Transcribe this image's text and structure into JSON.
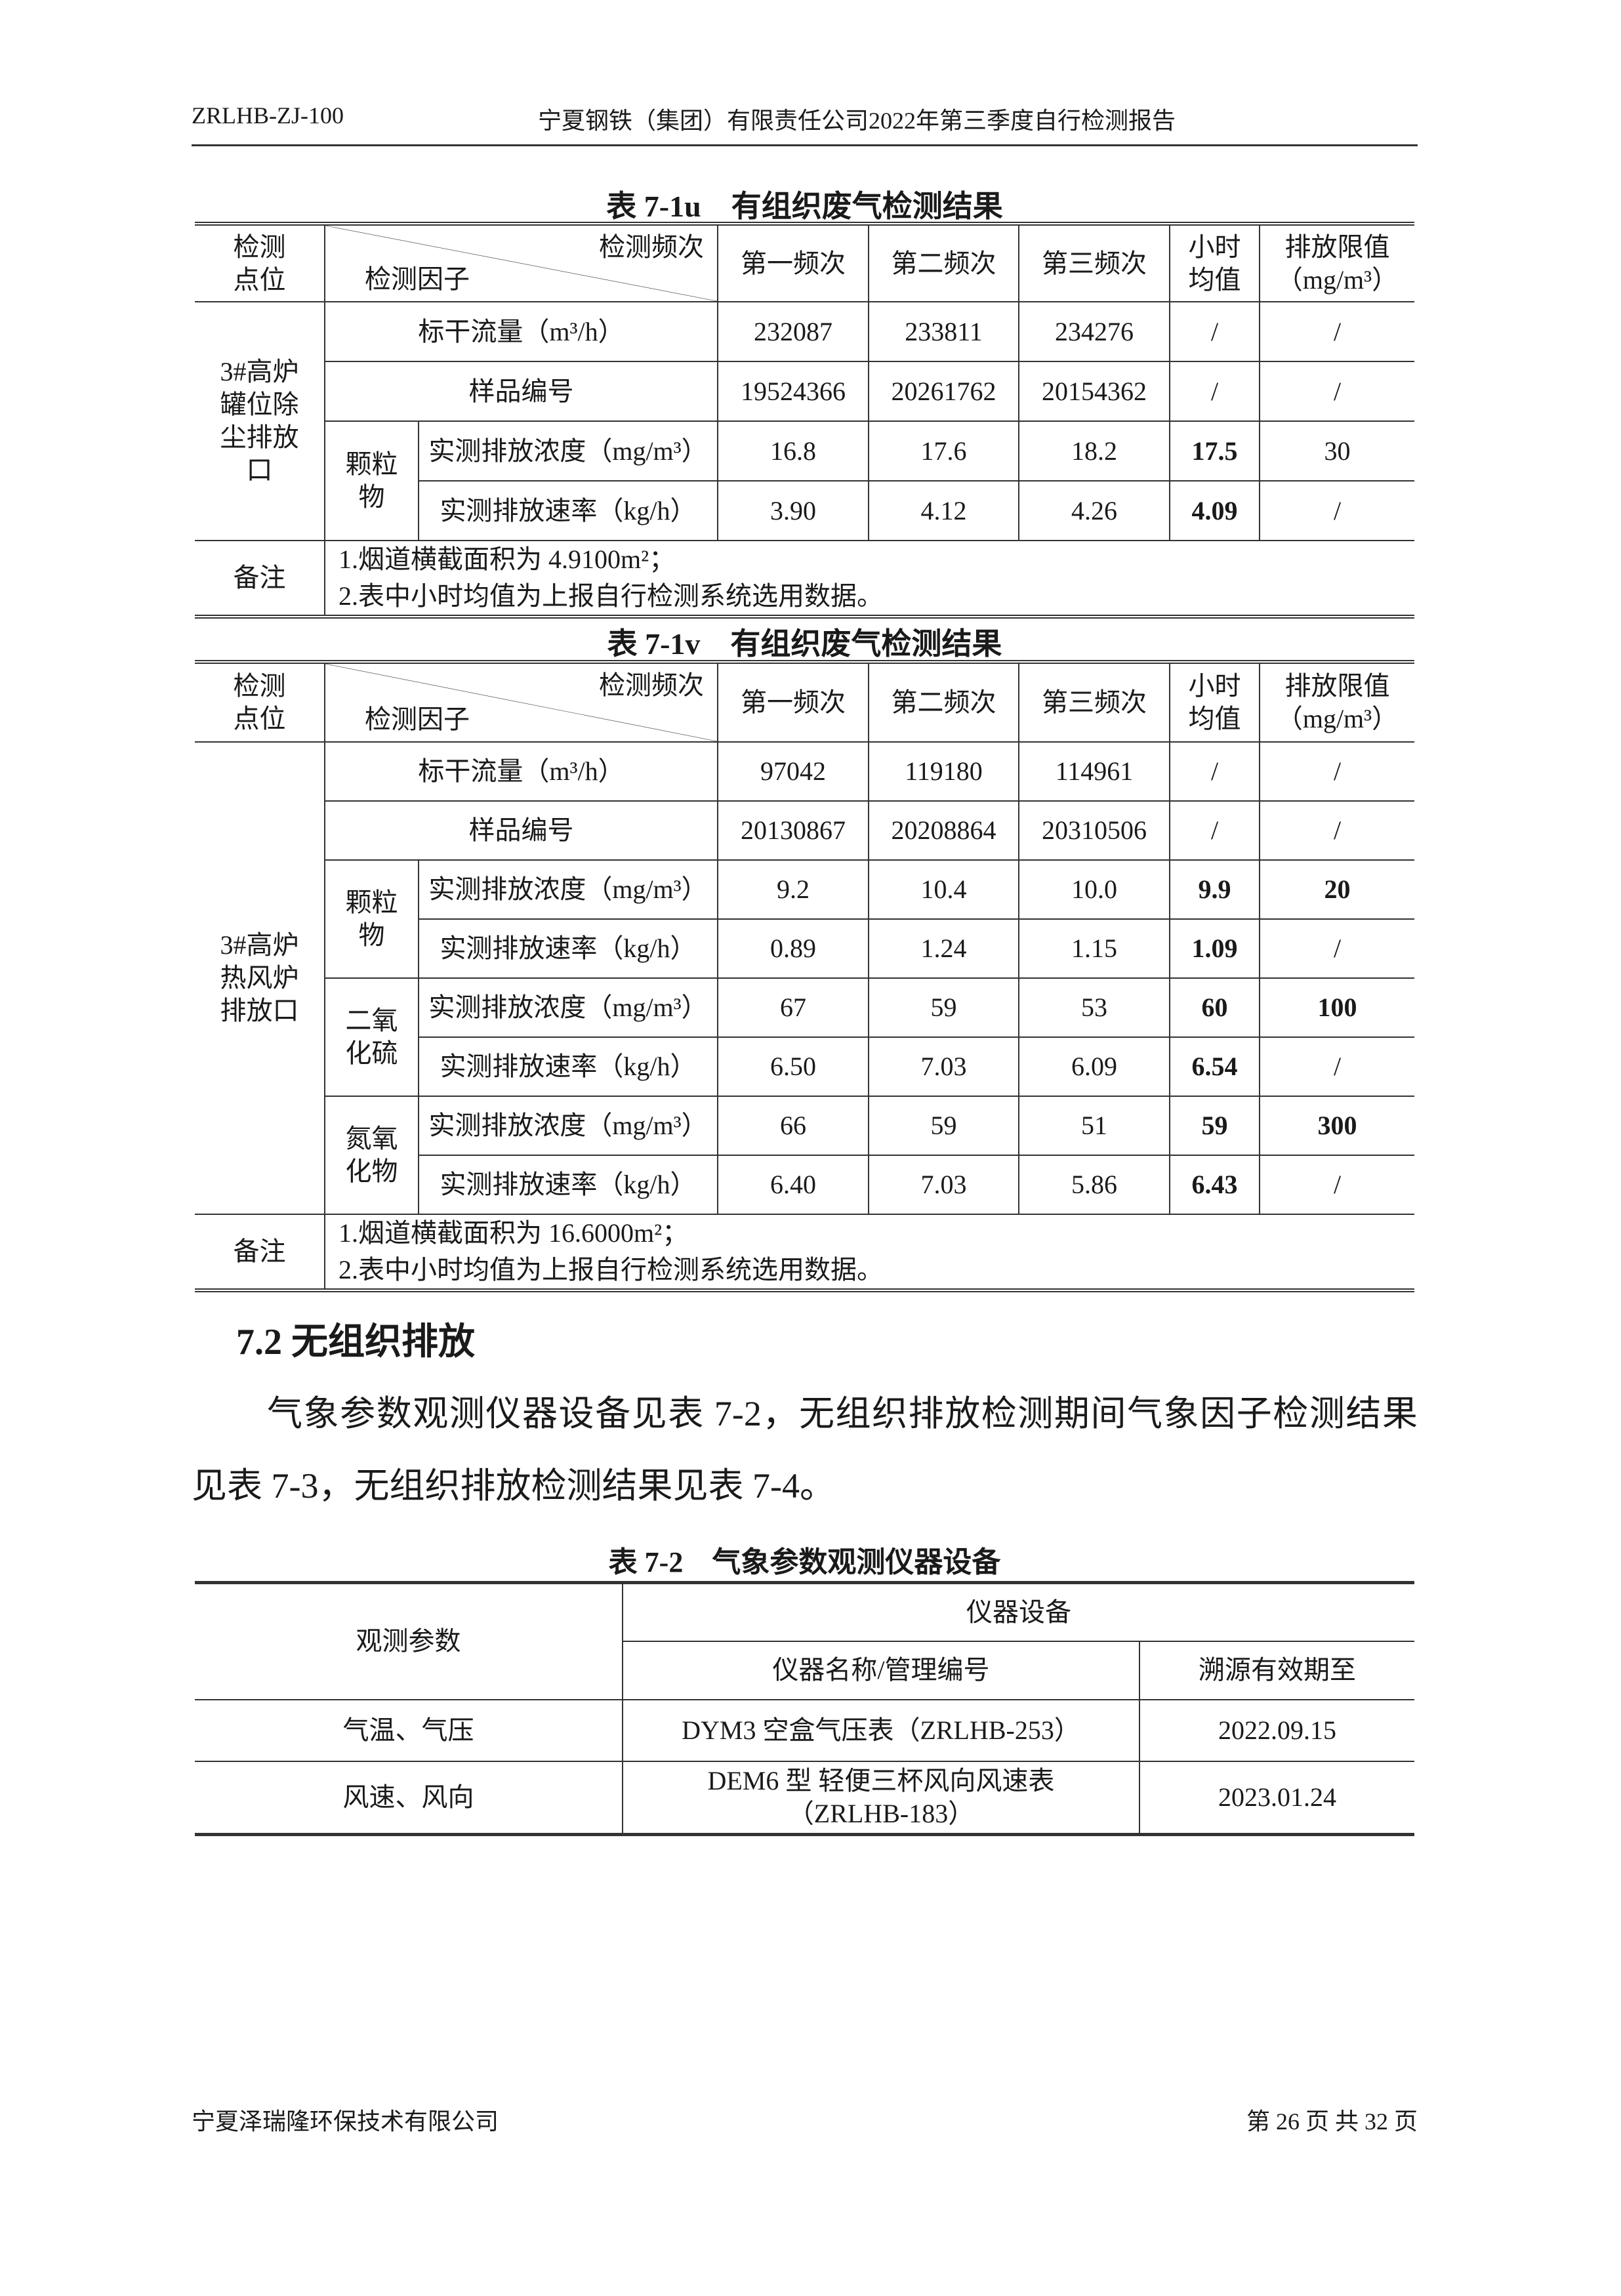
{
  "header": {
    "doc_code": "ZRLHB-ZJ-100",
    "title": "宁夏钢铁（集团）有限责任公司2022年第三季度自行检测报告"
  },
  "table_u": {
    "caption": "表 7-1u　有组织废气检测结果",
    "headers": {
      "point": "检测\n点位",
      "freq": "检测频次",
      "factor": "检测因子",
      "c1": "第一频次",
      "c2": "第二频次",
      "c3": "第三频次",
      "avg": "小时\n均值",
      "limit": "排放限值\n（mg/m³）"
    },
    "point": "3#高炉\n罐位除\n尘排放\n口",
    "rows": [
      {
        "label": "标干流量（m³/h）",
        "v": [
          "232087",
          "233811",
          "234276"
        ],
        "avg": "/",
        "limit": "/"
      },
      {
        "label": "样品编号",
        "v": [
          "19524366",
          "20261762",
          "20154362"
        ],
        "avg": "/",
        "limit": "/"
      }
    ],
    "groups": [
      {
        "name": "颗粒\n物",
        "rows": [
          {
            "label": "实测排放浓度（mg/m³）",
            "v": [
              "16.8",
              "17.6",
              "18.2"
            ],
            "avg": "17.5",
            "limit": "30"
          },
          {
            "label": "实测排放速率（kg/h）",
            "v": [
              "3.90",
              "4.12",
              "4.26"
            ],
            "avg": "4.09",
            "limit": "/"
          }
        ]
      }
    ],
    "remarks_label": "备注",
    "remarks": [
      "1.烟道横截面积为 4.9100m²；",
      "2.表中小时均值为上报自行检测系统选用数据。"
    ]
  },
  "table_v": {
    "caption": "表 7-1v　有组织废气检测结果",
    "point": "3#高炉\n热风炉\n排放口",
    "rows": [
      {
        "label": "标干流量（m³/h）",
        "v": [
          "97042",
          "119180",
          "114961"
        ],
        "avg": "/",
        "limit": "/"
      },
      {
        "label": "样品编号",
        "v": [
          "20130867",
          "20208864",
          "20310506"
        ],
        "avg": "/",
        "limit": "/"
      }
    ],
    "groups": [
      {
        "name": "颗粒\n物",
        "rows": [
          {
            "label": "实测排放浓度（mg/m³）",
            "v": [
              "9.2",
              "10.4",
              "10.0"
            ],
            "avg": "9.9",
            "limit": "20"
          },
          {
            "label": "实测排放速率（kg/h）",
            "v": [
              "0.89",
              "1.24",
              "1.15"
            ],
            "avg": "1.09",
            "limit": "/"
          }
        ]
      },
      {
        "name": "二氧\n化硫",
        "rows": [
          {
            "label": "实测排放浓度（mg/m³）",
            "v": [
              "67",
              "59",
              "53"
            ],
            "avg": "60",
            "limit": "100"
          },
          {
            "label": "实测排放速率（kg/h）",
            "v": [
              "6.50",
              "7.03",
              "6.09"
            ],
            "avg": "6.54",
            "limit": "/"
          }
        ]
      },
      {
        "name": "氮氧\n化物",
        "rows": [
          {
            "label": "实测排放浓度（mg/m³）",
            "v": [
              "66",
              "59",
              "51"
            ],
            "avg": "59",
            "limit": "300"
          },
          {
            "label": "实测排放速率（kg/h）",
            "v": [
              "6.40",
              "7.03",
              "5.86"
            ],
            "avg": "6.43",
            "limit": "/"
          }
        ]
      }
    ],
    "remarks_label": "备注",
    "remarks": [
      "1.烟道横截面积为 16.6000m²；",
      "2.表中小时均值为上报自行检测系统选用数据。"
    ]
  },
  "section": {
    "heading": "7.2 无组织排放",
    "paragraph": "气象参数观测仪器设备见表 7-2，无组织排放检测期间气象因子检测结果见表 7-3，无组织排放检测结果见表 7-4。"
  },
  "table_2": {
    "caption": "表 7-2　气象参数观测仪器设备",
    "h_param": "观测参数",
    "h_equip": "仪器设备",
    "h_name": "仪器名称/管理编号",
    "h_valid": "溯源有效期至",
    "rows": [
      {
        "param": "气温、气压",
        "name": "DYM3 空盒气压表（ZRLHB-253）",
        "valid": "2022.09.15"
      },
      {
        "param": "风速、风向",
        "name": "DEM6 型 轻便三杯风向风速表\n（ZRLHB-183）",
        "valid": "2023.01.24"
      }
    ]
  },
  "footer": {
    "company": "宁夏泽瑞隆环保技术有限公司",
    "page": "第 26 页 共 32 页"
  }
}
